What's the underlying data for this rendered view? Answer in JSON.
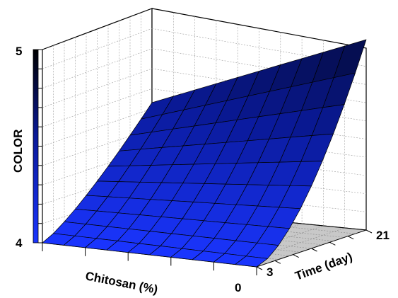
{
  "chart_data": {
    "type": "surface3d",
    "title": "",
    "zlabel": "COLOR",
    "xlabel": "Chitosan (%)",
    "ylabel": "Time (day)",
    "z_ticks": [
      "4",
      "5"
    ],
    "x_ticks": [
      "0"
    ],
    "y_ticks": [
      "3",
      "21"
    ],
    "zlim": [
      4,
      5
    ],
    "ylim": [
      3,
      21
    ],
    "grid": true,
    "colormap": [
      "#1a35ff",
      "#0a1a9a",
      "#000000"
    ],
    "surface_edge_values": {
      "chitosan_max_time_min": 4.0,
      "chitosan_max_time_max": 4.55,
      "chitosan_min_time_min": 4.0,
      "chitosan_min_time_max": 5.0
    }
  }
}
